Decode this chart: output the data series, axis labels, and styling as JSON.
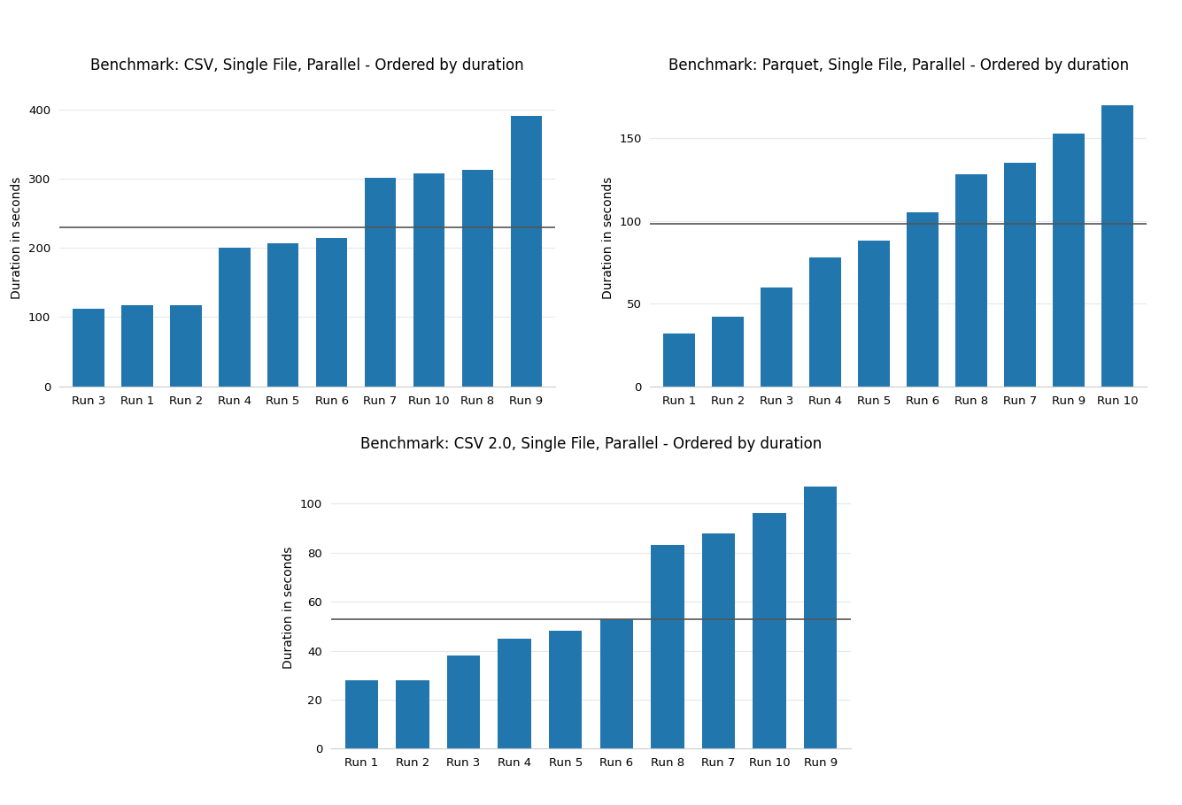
{
  "chart1": {
    "title": "Benchmark: CSV, Single File, Parallel - Ordered by duration",
    "categories": [
      "Run 3",
      "Run 1",
      "Run 2",
      "Run 4",
      "Run 5",
      "Run 6",
      "Run 7",
      "Run 10",
      "Run 8",
      "Run 9"
    ],
    "values": [
      112,
      117,
      117,
      200,
      207,
      214,
      301,
      308,
      313,
      390
    ],
    "hline": 230,
    "ylabel": "Duration in seconds",
    "ylim": [
      0,
      430
    ],
    "yticks": [
      0,
      100,
      200,
      300,
      400
    ]
  },
  "chart2": {
    "title": "Benchmark: Parquet, Single File, Parallel - Ordered by duration",
    "categories": [
      "Run 1",
      "Run 2",
      "Run 3",
      "Run 4",
      "Run 5",
      "Run 6",
      "Run 8",
      "Run 7",
      "Run 9",
      "Run 10"
    ],
    "values": [
      32,
      42,
      60,
      78,
      88,
      105,
      128,
      135,
      153,
      170
    ],
    "hline": 98,
    "ylabel": "Duration in seconds",
    "ylim": [
      0,
      180
    ],
    "yticks": [
      0,
      50,
      100,
      150
    ]
  },
  "chart3": {
    "title": "Benchmark: CSV 2.0, Single File, Parallel - Ordered by duration",
    "categories": [
      "Run 1",
      "Run 2",
      "Run 3",
      "Run 4",
      "Run 5",
      "Run 6",
      "Run 8",
      "Run 7",
      "Run 10",
      "Run 9"
    ],
    "values": [
      28,
      28,
      38,
      45,
      48,
      53,
      83,
      88,
      96,
      107
    ],
    "hline": 53,
    "ylabel": "Duration in seconds",
    "ylim": [
      0,
      115
    ],
    "yticks": [
      0,
      20,
      40,
      60,
      80,
      100
    ]
  },
  "bar_color": "#2176ae",
  "hline_color": "#555555",
  "background_color": "#ffffff",
  "grid_color": "#e8e8e8",
  "title_fontsize": 12,
  "label_fontsize": 10,
  "tick_fontsize": 9.5
}
